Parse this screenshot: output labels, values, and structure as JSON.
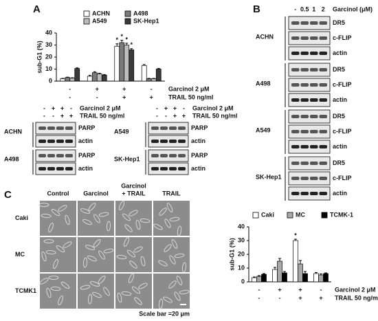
{
  "panels": [
    "A",
    "B",
    "C"
  ],
  "chart_data": [
    {
      "type": "bar",
      "ylabel": "sub-G1 (%)",
      "categories": [
        null,
        null,
        null,
        null
      ],
      "ylim": [
        0,
        40
      ],
      "yticks": [
        0,
        10,
        20,
        30,
        40
      ],
      "legend": "top",
      "legend_columns": 2,
      "series": [
        {
          "name": "ACHN",
          "color": "#ffffff",
          "values": [
            2,
            4,
            29,
            13
          ],
          "errors": [
            0.3,
            0.8,
            2,
            0.8
          ],
          "significance": [
            null,
            null,
            "*",
            null
          ]
        },
        {
          "name": "A498",
          "color": "#7a7a7a",
          "values": [
            3,
            7,
            32,
            2
          ],
          "errors": [
            0.3,
            0.8,
            2,
            0.3
          ],
          "significance": [
            null,
            null,
            "*",
            null
          ]
        },
        {
          "name": "A549",
          "color": "#bdbdbd",
          "values": [
            2.5,
            6,
            30,
            2
          ],
          "errors": [
            0.3,
            0.5,
            1.5,
            0.3
          ],
          "significance": [
            null,
            null,
            "*",
            null
          ]
        },
        {
          "name": "SK-Hep1",
          "color": "#3a3a3a",
          "values": [
            10.5,
            5,
            26,
            10
          ],
          "errors": [
            0.5,
            0.5,
            1,
            0.5
          ],
          "significance": [
            null,
            null,
            "*",
            null
          ]
        }
      ],
      "treatments": [
        {
          "name": "Garcinol 2 μM",
          "values": [
            "-",
            "+",
            "+",
            "-"
          ]
        },
        {
          "name": "TRAIL 50 ng/ml",
          "values": [
            "-",
            "-",
            "+",
            "+"
          ]
        }
      ]
    },
    {
      "type": "bar",
      "ylabel": "sub-G1 (%)",
      "categories": [
        null,
        null,
        null,
        null
      ],
      "ylim": [
        0,
        40
      ],
      "yticks": [
        0,
        10,
        20,
        30,
        40
      ],
      "legend": "top",
      "legend_columns": 3,
      "series": [
        {
          "name": "Caki",
          "color": "#ffffff",
          "values": [
            3,
            9,
            30,
            6
          ],
          "errors": [
            0.5,
            1.5,
            1,
            0.8
          ],
          "significance": [
            null,
            null,
            "*",
            null
          ]
        },
        {
          "name": "MC",
          "color": "#a8a8a8",
          "values": [
            4,
            15,
            13,
            5
          ],
          "errors": [
            0.5,
            2,
            2.5,
            0.8
          ],
          "significance": [
            null,
            null,
            null,
            null
          ]
        },
        {
          "name": "TCMK-1",
          "color": "#000000",
          "values": [
            5.5,
            6.5,
            6,
            6
          ],
          "errors": [
            0.5,
            1,
            1.5,
            0.5
          ],
          "significance": [
            null,
            null,
            null,
            null
          ]
        }
      ],
      "treatments": [
        {
          "name": "Garcinol  2 μM",
          "values": [
            "-",
            "+",
            "+",
            "-"
          ]
        },
        {
          "name": "TRAIL 50 ng/ml",
          "values": [
            "-",
            "-",
            "+",
            "+"
          ]
        }
      ]
    }
  ],
  "blots_a": [
    {
      "treatments": [
        {
          "name": "Garcinol 2 μM",
          "values": [
            "-",
            "+",
            "+",
            "-"
          ]
        },
        {
          "name": "TRAIL 50 ng/ml",
          "values": [
            "-",
            "-",
            "+",
            "+"
          ]
        }
      ],
      "groups": [
        {
          "cell": "ACHN",
          "bands": [
            "PARP",
            "actin"
          ]
        },
        {
          "cell": "A498",
          "bands": [
            "PARP",
            "actin"
          ]
        }
      ]
    },
    {
      "treatments": [
        {
          "name": "Garcinol 2 μM",
          "values": [
            "-",
            "+",
            "+",
            "-"
          ]
        },
        {
          "name": "TRAIL 50 ng/ml",
          "values": [
            "-",
            "-",
            "+",
            "+"
          ]
        }
      ],
      "groups": [
        {
          "cell": "A549",
          "bands": [
            "PARP",
            "actin"
          ]
        },
        {
          "cell": "SK-Hep1",
          "bands": [
            "PARP",
            "actin"
          ]
        }
      ]
    }
  ],
  "blot_b": {
    "header": "Garcinol (μM)",
    "lanes": [
      "-",
      "0.5",
      "1",
      "2"
    ],
    "groups": [
      {
        "cell": "ACHN",
        "bands": [
          "DR5",
          "c-FLIP",
          "actin"
        ]
      },
      {
        "cell": "A498",
        "bands": [
          "DR5",
          "c-FLIP",
          "actin"
        ]
      },
      {
        "cell": "A549",
        "bands": [
          "DR5",
          "c-FLIP",
          "actin"
        ]
      },
      {
        "cell": "SK-Hep1",
        "bands": [
          "DR5",
          "c-FLIP",
          "actin"
        ]
      }
    ]
  },
  "micrographs": {
    "columns": [
      "Control",
      "Garcinol",
      [
        "Garcinol",
        "+ TRAIL"
      ],
      "TRAIL"
    ],
    "rows": [
      "Caki",
      "MC",
      "TCMK1"
    ],
    "scale_bar": "Scale bar =20 μm"
  }
}
